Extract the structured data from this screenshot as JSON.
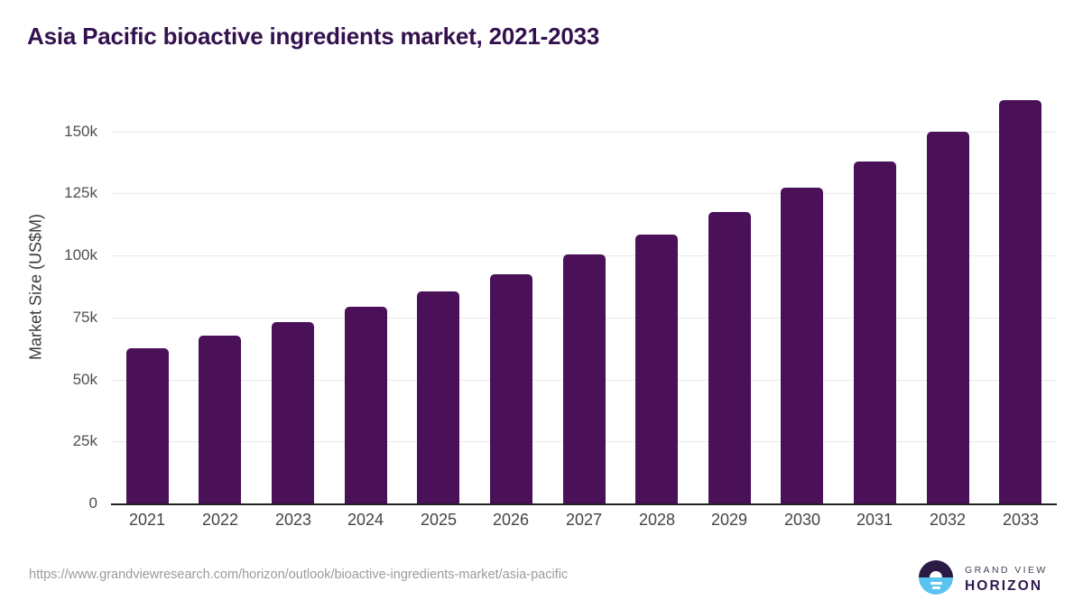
{
  "page": {
    "title": "Asia Pacific bioactive ingredients market, 2021-2033",
    "source_url": "https://www.grandviewresearch.com/horizon/outlook/bioactive-ingredients-market/asia-pacific"
  },
  "brand": {
    "name_top": "GRAND VIEW",
    "name_bottom": "HORIZON",
    "logo_top_color": "#2B1A43",
    "logo_bottom_color": "#5BC3F0"
  },
  "colors": {
    "bar": "#4A1159",
    "title_text": "#33114F",
    "axis_text": "#4F4F4F",
    "x_label_text": "#454545",
    "gridline": "#E9E9E9",
    "axis_line": "#212121",
    "url_text": "#9B9B9B"
  },
  "chart_data": {
    "type": "bar",
    "title": "Asia Pacific bioactive ingredients market, 2021-2033",
    "xlabel": "",
    "ylabel": "Market Size (US$M)",
    "categories": [
      "2021",
      "2022",
      "2023",
      "2024",
      "2025",
      "2026",
      "2027",
      "2028",
      "2029",
      "2030",
      "2031",
      "2032",
      "2033"
    ],
    "values": [
      62700,
      67600,
      73200,
      79100,
      85300,
      92200,
      100200,
      108500,
      117500,
      127300,
      137900,
      149800,
      162500
    ],
    "series_name": "Market Size (US$M)",
    "unit": "US$M",
    "ylim": [
      0,
      165000
    ],
    "yticks": {
      "values": [
        0,
        25000,
        50000,
        75000,
        100000,
        125000,
        150000
      ],
      "labels": [
        "0",
        "25k",
        "50k",
        "75k",
        "100k",
        "125k",
        "150k"
      ]
    },
    "grid": "horizontal",
    "legend": "none",
    "bar_color": "#4A1159"
  }
}
